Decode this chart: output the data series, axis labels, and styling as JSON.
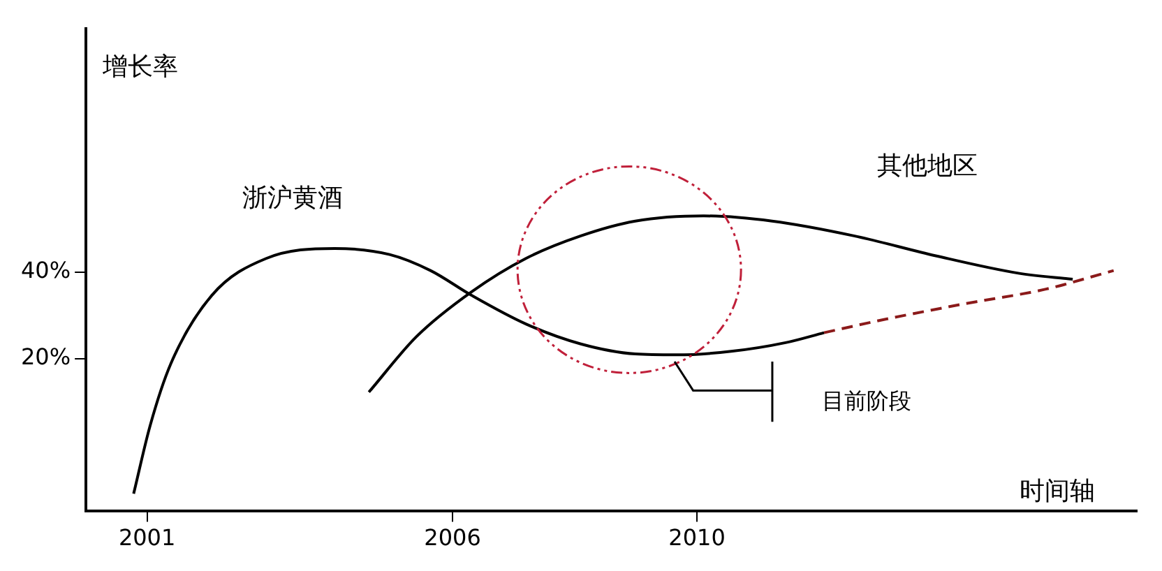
{
  "chart_data": {
    "type": "line",
    "xlabel": "时间轴",
    "ylabel": "增长率",
    "xlim": [
      2000,
      2017.2
    ],
    "ylim": [
      -15,
      96
    ],
    "xticks": [
      2001,
      2006,
      2010
    ],
    "yticks": [
      {
        "value": 20,
        "label": "20%"
      },
      {
        "value": 40,
        "label": "40%"
      }
    ],
    "grid": false,
    "legend": false,
    "marker": "none",
    "annotations": [
      "目前阶段"
    ],
    "series": [
      {
        "name": "浙沪黄酒",
        "color": "#000000",
        "line_style": "solid",
        "x": [
          2000.78,
          2001.05,
          2001.39,
          2002.06,
          2002.95,
          2004.07,
          2004.97,
          2005.64,
          2006.31,
          2007.2,
          2008.1,
          2008.99,
          2009.66,
          2010.56,
          2011.45,
          2012.08
        ],
        "values": [
          -11.1,
          4.6,
          18.9,
          34.6,
          43.1,
          45.4,
          44.0,
          40.3,
          34.6,
          28.0,
          23.4,
          21.1,
          20.9,
          21.7,
          23.7,
          26.0
        ]
      },
      {
        "color": "#8b1a1a",
        "line_style": "dashed",
        "x": [
          2012.08,
          2013.02,
          2014.36,
          2015.7,
          2016.82
        ],
        "values": [
          26.0,
          28.9,
          32.6,
          36.0,
          40.3
        ]
      },
      {
        "name": "其他地区",
        "color": "#000000",
        "line_style": "solid",
        "x": [
          2004.63,
          2005.41,
          2006.31,
          2007.2,
          2008.1,
          2008.99,
          2010.11,
          2011.23,
          2012.57,
          2013.91,
          2015.26,
          2016.15
        ],
        "values": [
          12.3,
          25.1,
          35.4,
          43.1,
          48.3,
          51.7,
          52.9,
          51.7,
          48.3,
          43.7,
          39.7,
          38.3
        ]
      }
    ]
  }
}
